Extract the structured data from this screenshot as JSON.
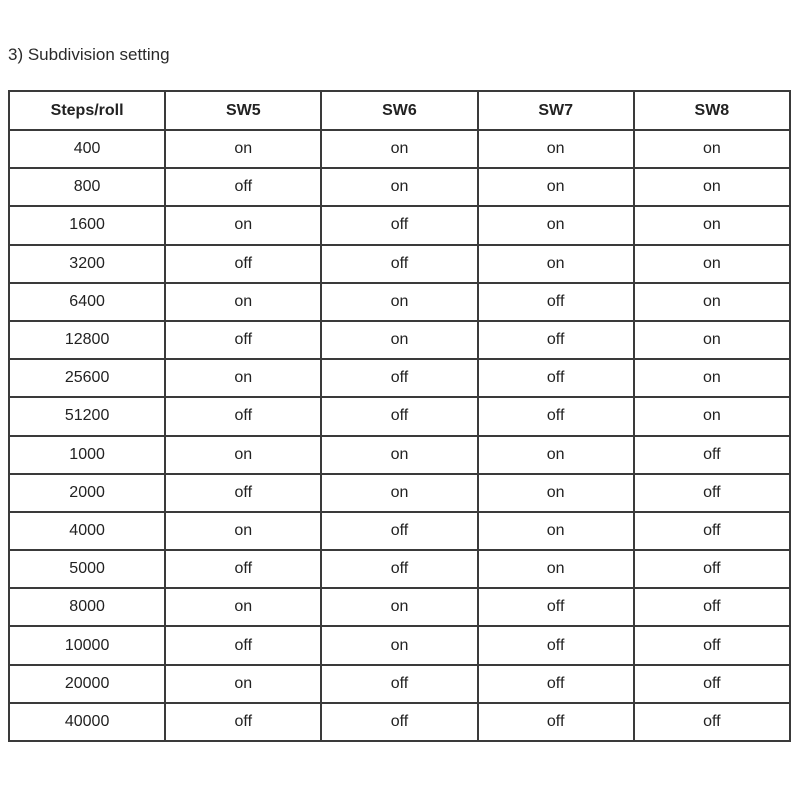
{
  "title": "3)  Subdivision setting",
  "table": {
    "headers": [
      "Steps/roll",
      "SW5",
      "SW6",
      "SW7",
      "SW8"
    ],
    "rows": [
      [
        "400",
        "on",
        "on",
        "on",
        "on"
      ],
      [
        "800",
        "off",
        "on",
        "on",
        "on"
      ],
      [
        "1600",
        "on",
        "off",
        "on",
        "on"
      ],
      [
        "3200",
        "off",
        "off",
        "on",
        "on"
      ],
      [
        "6400",
        "on",
        "on",
        "off",
        "on"
      ],
      [
        "12800",
        "off",
        "on",
        "off",
        "on"
      ],
      [
        "25600",
        "on",
        "off",
        "off",
        "on"
      ],
      [
        "51200",
        "off",
        "off",
        "off",
        "on"
      ],
      [
        "1000",
        "on",
        "on",
        "on",
        "off"
      ],
      [
        "2000",
        "off",
        "on",
        "on",
        "off"
      ],
      [
        "4000",
        "on",
        "off",
        "on",
        "off"
      ],
      [
        "5000",
        "off",
        "off",
        "on",
        "off"
      ],
      [
        "8000",
        "on",
        "on",
        "off",
        "off"
      ],
      [
        "10000",
        "off",
        "on",
        "off",
        "off"
      ],
      [
        "20000",
        "on",
        "off",
        "off",
        "off"
      ],
      [
        "40000",
        "off",
        "off",
        "off",
        "off"
      ]
    ]
  }
}
